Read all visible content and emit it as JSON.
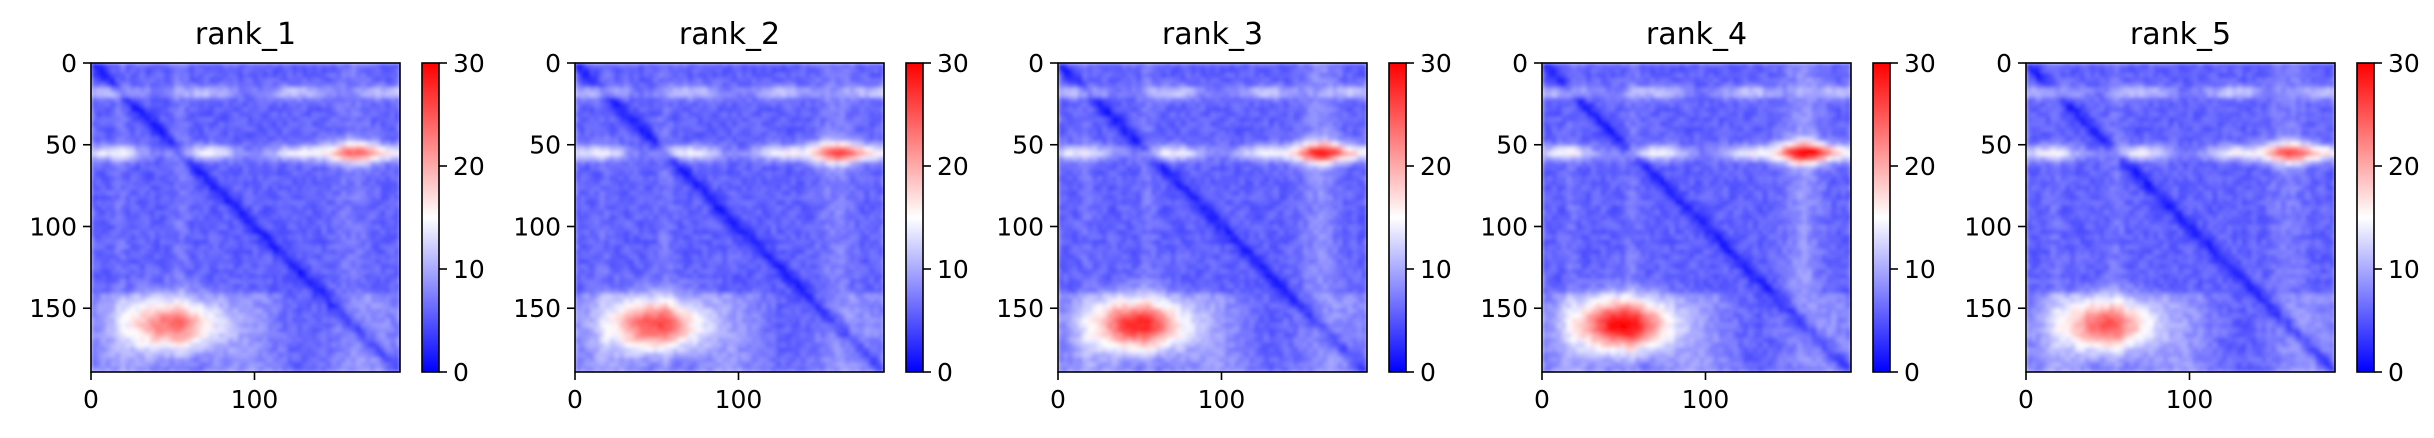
{
  "chart_data": [
    {
      "type": "heatmap",
      "title": "rank_1",
      "x_ticks": [
        0,
        100
      ],
      "y_ticks": [
        0,
        50,
        100,
        150
      ],
      "colorbar_ticks": [
        0,
        10,
        20,
        30
      ],
      "xlim": [
        0,
        189
      ],
      "ylim": [
        189,
        0
      ],
      "vmin": 0,
      "vmax": 30,
      "colormap": "bwr",
      "grid": false,
      "hot_rows": [
        18,
        55,
        158
      ],
      "hot_cols": [
        18,
        55,
        158
      ],
      "peak_level": 0.78
    },
    {
      "type": "heatmap",
      "title": "rank_2",
      "x_ticks": [
        0,
        100
      ],
      "y_ticks": [
        0,
        50,
        100,
        150
      ],
      "colorbar_ticks": [
        0,
        10,
        20,
        30
      ],
      "xlim": [
        0,
        189
      ],
      "ylim": [
        189,
        0
      ],
      "vmin": 0,
      "vmax": 30,
      "colormap": "bwr",
      "grid": false,
      "hot_rows": [
        18,
        55,
        158
      ],
      "hot_cols": [
        18,
        55,
        158
      ],
      "peak_level": 0.85
    },
    {
      "type": "heatmap",
      "title": "rank_3",
      "x_ticks": [
        0,
        100
      ],
      "y_ticks": [
        0,
        50,
        100,
        150
      ],
      "colorbar_ticks": [
        0,
        10,
        20,
        30
      ],
      "xlim": [
        0,
        189
      ],
      "ylim": [
        189,
        0
      ],
      "vmin": 0,
      "vmax": 30,
      "colormap": "bwr",
      "grid": false,
      "hot_rows": [
        18,
        55,
        158
      ],
      "hot_cols": [
        18,
        55,
        158
      ],
      "peak_level": 0.93
    },
    {
      "type": "heatmap",
      "title": "rank_4",
      "x_ticks": [
        0,
        100
      ],
      "y_ticks": [
        0,
        50,
        100,
        150
      ],
      "colorbar_ticks": [
        0,
        10,
        20,
        30
      ],
      "xlim": [
        0,
        189
      ],
      "ylim": [
        189,
        0
      ],
      "vmin": 0,
      "vmax": 30,
      "colormap": "bwr",
      "grid": false,
      "hot_rows": [
        18,
        55,
        158
      ],
      "hot_cols": [
        18,
        55,
        158
      ],
      "peak_level": 1.0
    },
    {
      "type": "heatmap",
      "title": "rank_5",
      "x_ticks": [
        0,
        100
      ],
      "y_ticks": [
        0,
        50,
        100,
        150
      ],
      "colorbar_ticks": [
        0,
        10,
        20,
        30
      ],
      "xlim": [
        0,
        189
      ],
      "ylim": [
        189,
        0
      ],
      "vmin": 0,
      "vmax": 30,
      "colormap": "bwr",
      "grid": false,
      "hot_rows": [
        18,
        55,
        158
      ],
      "hot_cols": [
        18,
        55,
        158
      ],
      "peak_level": 0.82
    }
  ]
}
